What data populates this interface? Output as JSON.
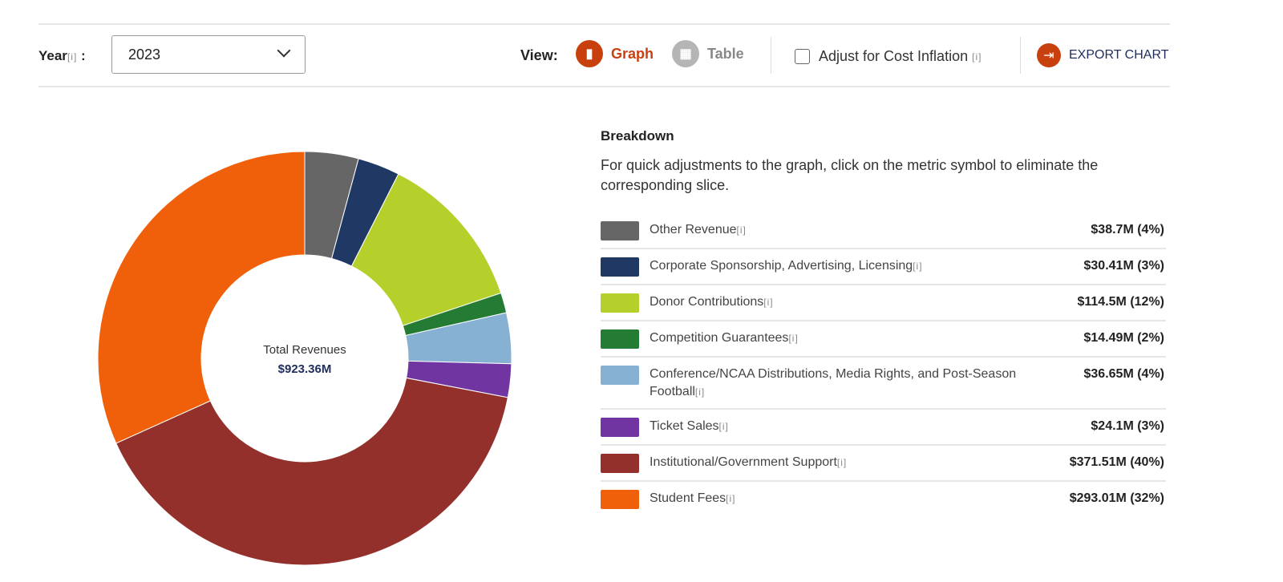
{
  "toolbar": {
    "year_label": "Year",
    "info": "[i]",
    "colon": " :",
    "year_value": "2023",
    "view_label": "View:",
    "graph_label": "Graph",
    "table_label": "Table",
    "inflation_label": "Adjust for Cost Inflation",
    "export_label": "EXPORT CHART",
    "accent": "#c9400f"
  },
  "breakdown": {
    "title": "Breakdown",
    "description": "For quick adjustments to the graph, click on the metric symbol to eliminate the corresponding slice."
  },
  "chart_data": {
    "type": "pie",
    "donut": true,
    "center_label": "Total Revenues",
    "center_value": "$923.36M",
    "slices": [
      {
        "name": "Other Revenue",
        "value": 38.7,
        "display": "$38.7M (4%)",
        "color": "#666666"
      },
      {
        "name": "Corporate Sponsorship, Advertising, Licensing",
        "value": 30.41,
        "display": "$30.41M (3%)",
        "color": "#1f3864"
      },
      {
        "name": "Donor Contributions",
        "value": 114.5,
        "display": "$114.5M (12%)",
        "color": "#b5cf2b"
      },
      {
        "name": "Competition Guarantees",
        "value": 14.49,
        "display": "$14.49M (2%)",
        "color": "#237b34"
      },
      {
        "name": "Conference/NCAA Distributions, Media Rights, and Post-Season Football",
        "value": 36.65,
        "display": "$36.65M (4%)",
        "color": "#86b1d3"
      },
      {
        "name": "Ticket Sales",
        "value": 24.1,
        "display": "$24.1M (3%)",
        "color": "#7035a0"
      },
      {
        "name": "Institutional/Government Support",
        "value": 371.51,
        "display": "$371.51M (40%)",
        "color": "#94302c"
      },
      {
        "name": "Student Fees",
        "value": 293.01,
        "display": "$293.01M (32%)",
        "color": "#f0600a"
      }
    ]
  }
}
